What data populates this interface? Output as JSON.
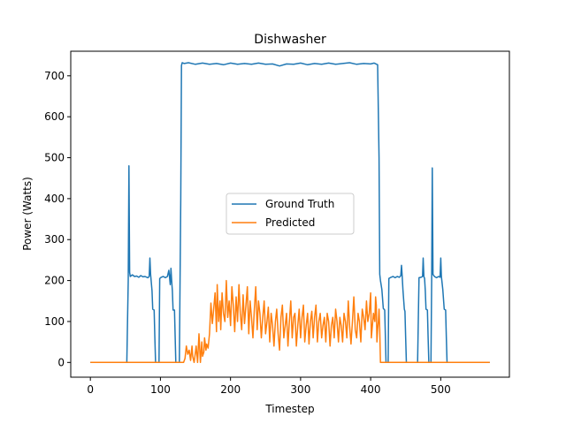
{
  "chart_data": {
    "type": "line",
    "title": "Dishwasher",
    "xlabel": "Timestep",
    "ylabel": "Power (Watts)",
    "xlim": [
      -28,
      598
    ],
    "ylim": [
      -36,
      760
    ],
    "xticks": [
      0,
      100,
      200,
      300,
      400,
      500
    ],
    "yticks": [
      0,
      100,
      200,
      300,
      400,
      500,
      600,
      700
    ],
    "legend_position": "center",
    "grid": false,
    "series": [
      {
        "name": "Ground Truth",
        "color": "#1f77b4",
        "points": [
          [
            0,
            0
          ],
          [
            52,
            0
          ],
          [
            54,
            200
          ],
          [
            55,
            480
          ],
          [
            56,
            220
          ],
          [
            57,
            210
          ],
          [
            60,
            214
          ],
          [
            63,
            210
          ],
          [
            66,
            211
          ],
          [
            69,
            208
          ],
          [
            72,
            212
          ],
          [
            75,
            209
          ],
          [
            78,
            210
          ],
          [
            82,
            207
          ],
          [
            84,
            210
          ],
          [
            85,
            255
          ],
          [
            86,
            215
          ],
          [
            88,
            175
          ],
          [
            89,
            130
          ],
          [
            91,
            128
          ],
          [
            92,
            60
          ],
          [
            93,
            0
          ],
          [
            98,
            0
          ],
          [
            99,
            205
          ],
          [
            101,
            208
          ],
          [
            104,
            210
          ],
          [
            107,
            207
          ],
          [
            110,
            210
          ],
          [
            112,
            225
          ],
          [
            113,
            208
          ],
          [
            114,
            190
          ],
          [
            115,
            230
          ],
          [
            116,
            200
          ],
          [
            117,
            175
          ],
          [
            118,
            128
          ],
          [
            120,
            128
          ],
          [
            121,
            60
          ],
          [
            122,
            0
          ],
          [
            127,
            0
          ],
          [
            129,
            400
          ],
          [
            130,
            725
          ],
          [
            131,
            732
          ],
          [
            134,
            730
          ],
          [
            140,
            732
          ],
          [
            150,
            728
          ],
          [
            160,
            731
          ],
          [
            170,
            728
          ],
          [
            180,
            730
          ],
          [
            190,
            727
          ],
          [
            200,
            731
          ],
          [
            210,
            728
          ],
          [
            220,
            730
          ],
          [
            230,
            728
          ],
          [
            240,
            731
          ],
          [
            250,
            728
          ],
          [
            260,
            729
          ],
          [
            270,
            724
          ],
          [
            280,
            729
          ],
          [
            290,
            728
          ],
          [
            300,
            731
          ],
          [
            310,
            727
          ],
          [
            320,
            730
          ],
          [
            330,
            728
          ],
          [
            340,
            731
          ],
          [
            350,
            728
          ],
          [
            360,
            730
          ],
          [
            370,
            732
          ],
          [
            380,
            728
          ],
          [
            390,
            730
          ],
          [
            400,
            729
          ],
          [
            405,
            731
          ],
          [
            410,
            727
          ],
          [
            412,
            500
          ],
          [
            413,
            215
          ],
          [
            414,
            200
          ],
          [
            416,
            178
          ],
          [
            418,
            132
          ],
          [
            420,
            128
          ],
          [
            421,
            60
          ],
          [
            422,
            0
          ],
          [
            425,
            0
          ],
          [
            426,
            205
          ],
          [
            429,
            208
          ],
          [
            432,
            210
          ],
          [
            435,
            207
          ],
          [
            438,
            210
          ],
          [
            441,
            208
          ],
          [
            443,
            212
          ],
          [
            444,
            237
          ],
          [
            445,
            210
          ],
          [
            446,
            178
          ],
          [
            448,
            130
          ],
          [
            449,
            125
          ],
          [
            450,
            60
          ],
          [
            451,
            0
          ],
          [
            467,
            0
          ],
          [
            469,
            207
          ],
          [
            472,
            208
          ],
          [
            474,
            210
          ],
          [
            475,
            255
          ],
          [
            476,
            210
          ],
          [
            477,
            205
          ],
          [
            478,
            175
          ],
          [
            479,
            130
          ],
          [
            481,
            128
          ],
          [
            482,
            60
          ],
          [
            483,
            0
          ],
          [
            486,
            0
          ],
          [
            487,
            200
          ],
          [
            488,
            475
          ],
          [
            489,
            215
          ],
          [
            491,
            210
          ],
          [
            494,
            207
          ],
          [
            497,
            210
          ],
          [
            499,
            208
          ],
          [
            500,
            255
          ],
          [
            501,
            210
          ],
          [
            503,
            178
          ],
          [
            505,
            130
          ],
          [
            507,
            128
          ],
          [
            508,
            60
          ],
          [
            509,
            0
          ],
          [
            570,
            0
          ]
        ]
      },
      {
        "name": "Predicted",
        "color": "#ff7f0e",
        "points": [
          [
            0,
            0
          ],
          [
            133,
            0
          ],
          [
            135,
            10
          ],
          [
            137,
            40
          ],
          [
            139,
            20
          ],
          [
            141,
            30
          ],
          [
            143,
            5
          ],
          [
            145,
            40
          ],
          [
            146,
            15
          ],
          [
            148,
            0
          ],
          [
            150,
            25
          ],
          [
            151,
            40
          ],
          [
            153,
            0
          ],
          [
            155,
            70
          ],
          [
            157,
            0
          ],
          [
            159,
            50
          ],
          [
            160,
            15
          ],
          [
            162,
            25
          ],
          [
            163,
            60
          ],
          [
            165,
            30
          ],
          [
            166,
            45
          ],
          [
            168,
            35
          ],
          [
            170,
            70
          ],
          [
            172,
            145
          ],
          [
            174,
            95
          ],
          [
            176,
            130
          ],
          [
            178,
            170
          ],
          [
            180,
            75
          ],
          [
            181,
            190
          ],
          [
            183,
            100
          ],
          [
            185,
            150
          ],
          [
            186,
            80
          ],
          [
            188,
            170
          ],
          [
            190,
            120
          ],
          [
            192,
            100
          ],
          [
            194,
            200
          ],
          [
            196,
            110
          ],
          [
            198,
            150
          ],
          [
            200,
            90
          ],
          [
            202,
            185
          ],
          [
            204,
            140
          ],
          [
            206,
            75
          ],
          [
            208,
            160
          ],
          [
            210,
            100
          ],
          [
            212,
            190
          ],
          [
            214,
            120
          ],
          [
            216,
            80
          ],
          [
            218,
            165
          ],
          [
            220,
            95
          ],
          [
            222,
            140
          ],
          [
            224,
            185
          ],
          [
            226,
            70
          ],
          [
            228,
            150
          ],
          [
            230,
            110
          ],
          [
            232,
            60
          ],
          [
            234,
            130
          ],
          [
            236,
            185
          ],
          [
            238,
            80
          ],
          [
            240,
            150
          ],
          [
            242,
            120
          ],
          [
            244,
            60
          ],
          [
            246,
            110
          ],
          [
            248,
            150
          ],
          [
            250,
            70
          ],
          [
            252,
            100
          ],
          [
            254,
            135
          ],
          [
            256,
            50
          ],
          [
            258,
            120
          ],
          [
            260,
            90
          ],
          [
            262,
            40
          ],
          [
            264,
            100
          ],
          [
            266,
            130
          ],
          [
            268,
            70
          ],
          [
            270,
            30
          ],
          [
            272,
            110
          ],
          [
            274,
            140
          ],
          [
            276,
            60
          ],
          [
            278,
            90
          ],
          [
            280,
            120
          ],
          [
            282,
            40
          ],
          [
            284,
            100
          ],
          [
            286,
            150
          ],
          [
            288,
            60
          ],
          [
            290,
            110
          ],
          [
            292,
            120
          ],
          [
            294,
            40
          ],
          [
            296,
            90
          ],
          [
            298,
            130
          ],
          [
            300,
            60
          ],
          [
            302,
            110
          ],
          [
            304,
            140
          ],
          [
            306,
            50
          ],
          [
            308,
            90
          ],
          [
            310,
            120
          ],
          [
            312,
            45
          ],
          [
            314,
            100
          ],
          [
            316,
            125
          ],
          [
            318,
            60
          ],
          [
            320,
            110
          ],
          [
            322,
            140
          ],
          [
            324,
            50
          ],
          [
            326,
            100
          ],
          [
            328,
            120
          ],
          [
            330,
            60
          ],
          [
            332,
            90
          ],
          [
            334,
            110
          ],
          [
            336,
            50
          ],
          [
            338,
            120
          ],
          [
            340,
            100
          ],
          [
            342,
            40
          ],
          [
            344,
            90
          ],
          [
            346,
            110
          ],
          [
            348,
            60
          ],
          [
            350,
            130
          ],
          [
            352,
            100
          ],
          [
            354,
            50
          ],
          [
            356,
            110
          ],
          [
            358,
            90
          ],
          [
            360,
            50
          ],
          [
            362,
            120
          ],
          [
            364,
            100
          ],
          [
            366,
            60
          ],
          [
            368,
            150
          ],
          [
            370,
            90
          ],
          [
            372,
            45
          ],
          [
            374,
            100
          ],
          [
            376,
            160
          ],
          [
            378,
            80
          ],
          [
            380,
            60
          ],
          [
            382,
            120
          ],
          [
            384,
            100
          ],
          [
            386,
            50
          ],
          [
            388,
            130
          ],
          [
            390,
            110
          ],
          [
            392,
            80
          ],
          [
            394,
            150
          ],
          [
            396,
            100
          ],
          [
            398,
            120
          ],
          [
            400,
            170
          ],
          [
            401,
            60
          ],
          [
            402,
            80
          ],
          [
            404,
            120
          ],
          [
            406,
            100
          ],
          [
            407,
            160
          ],
          [
            408,
            140
          ],
          [
            409,
            50
          ],
          [
            410,
            80
          ],
          [
            411,
            100
          ],
          [
            412,
            130
          ],
          [
            413,
            80
          ],
          [
            414,
            0
          ],
          [
            570,
            0
          ]
        ]
      }
    ]
  }
}
